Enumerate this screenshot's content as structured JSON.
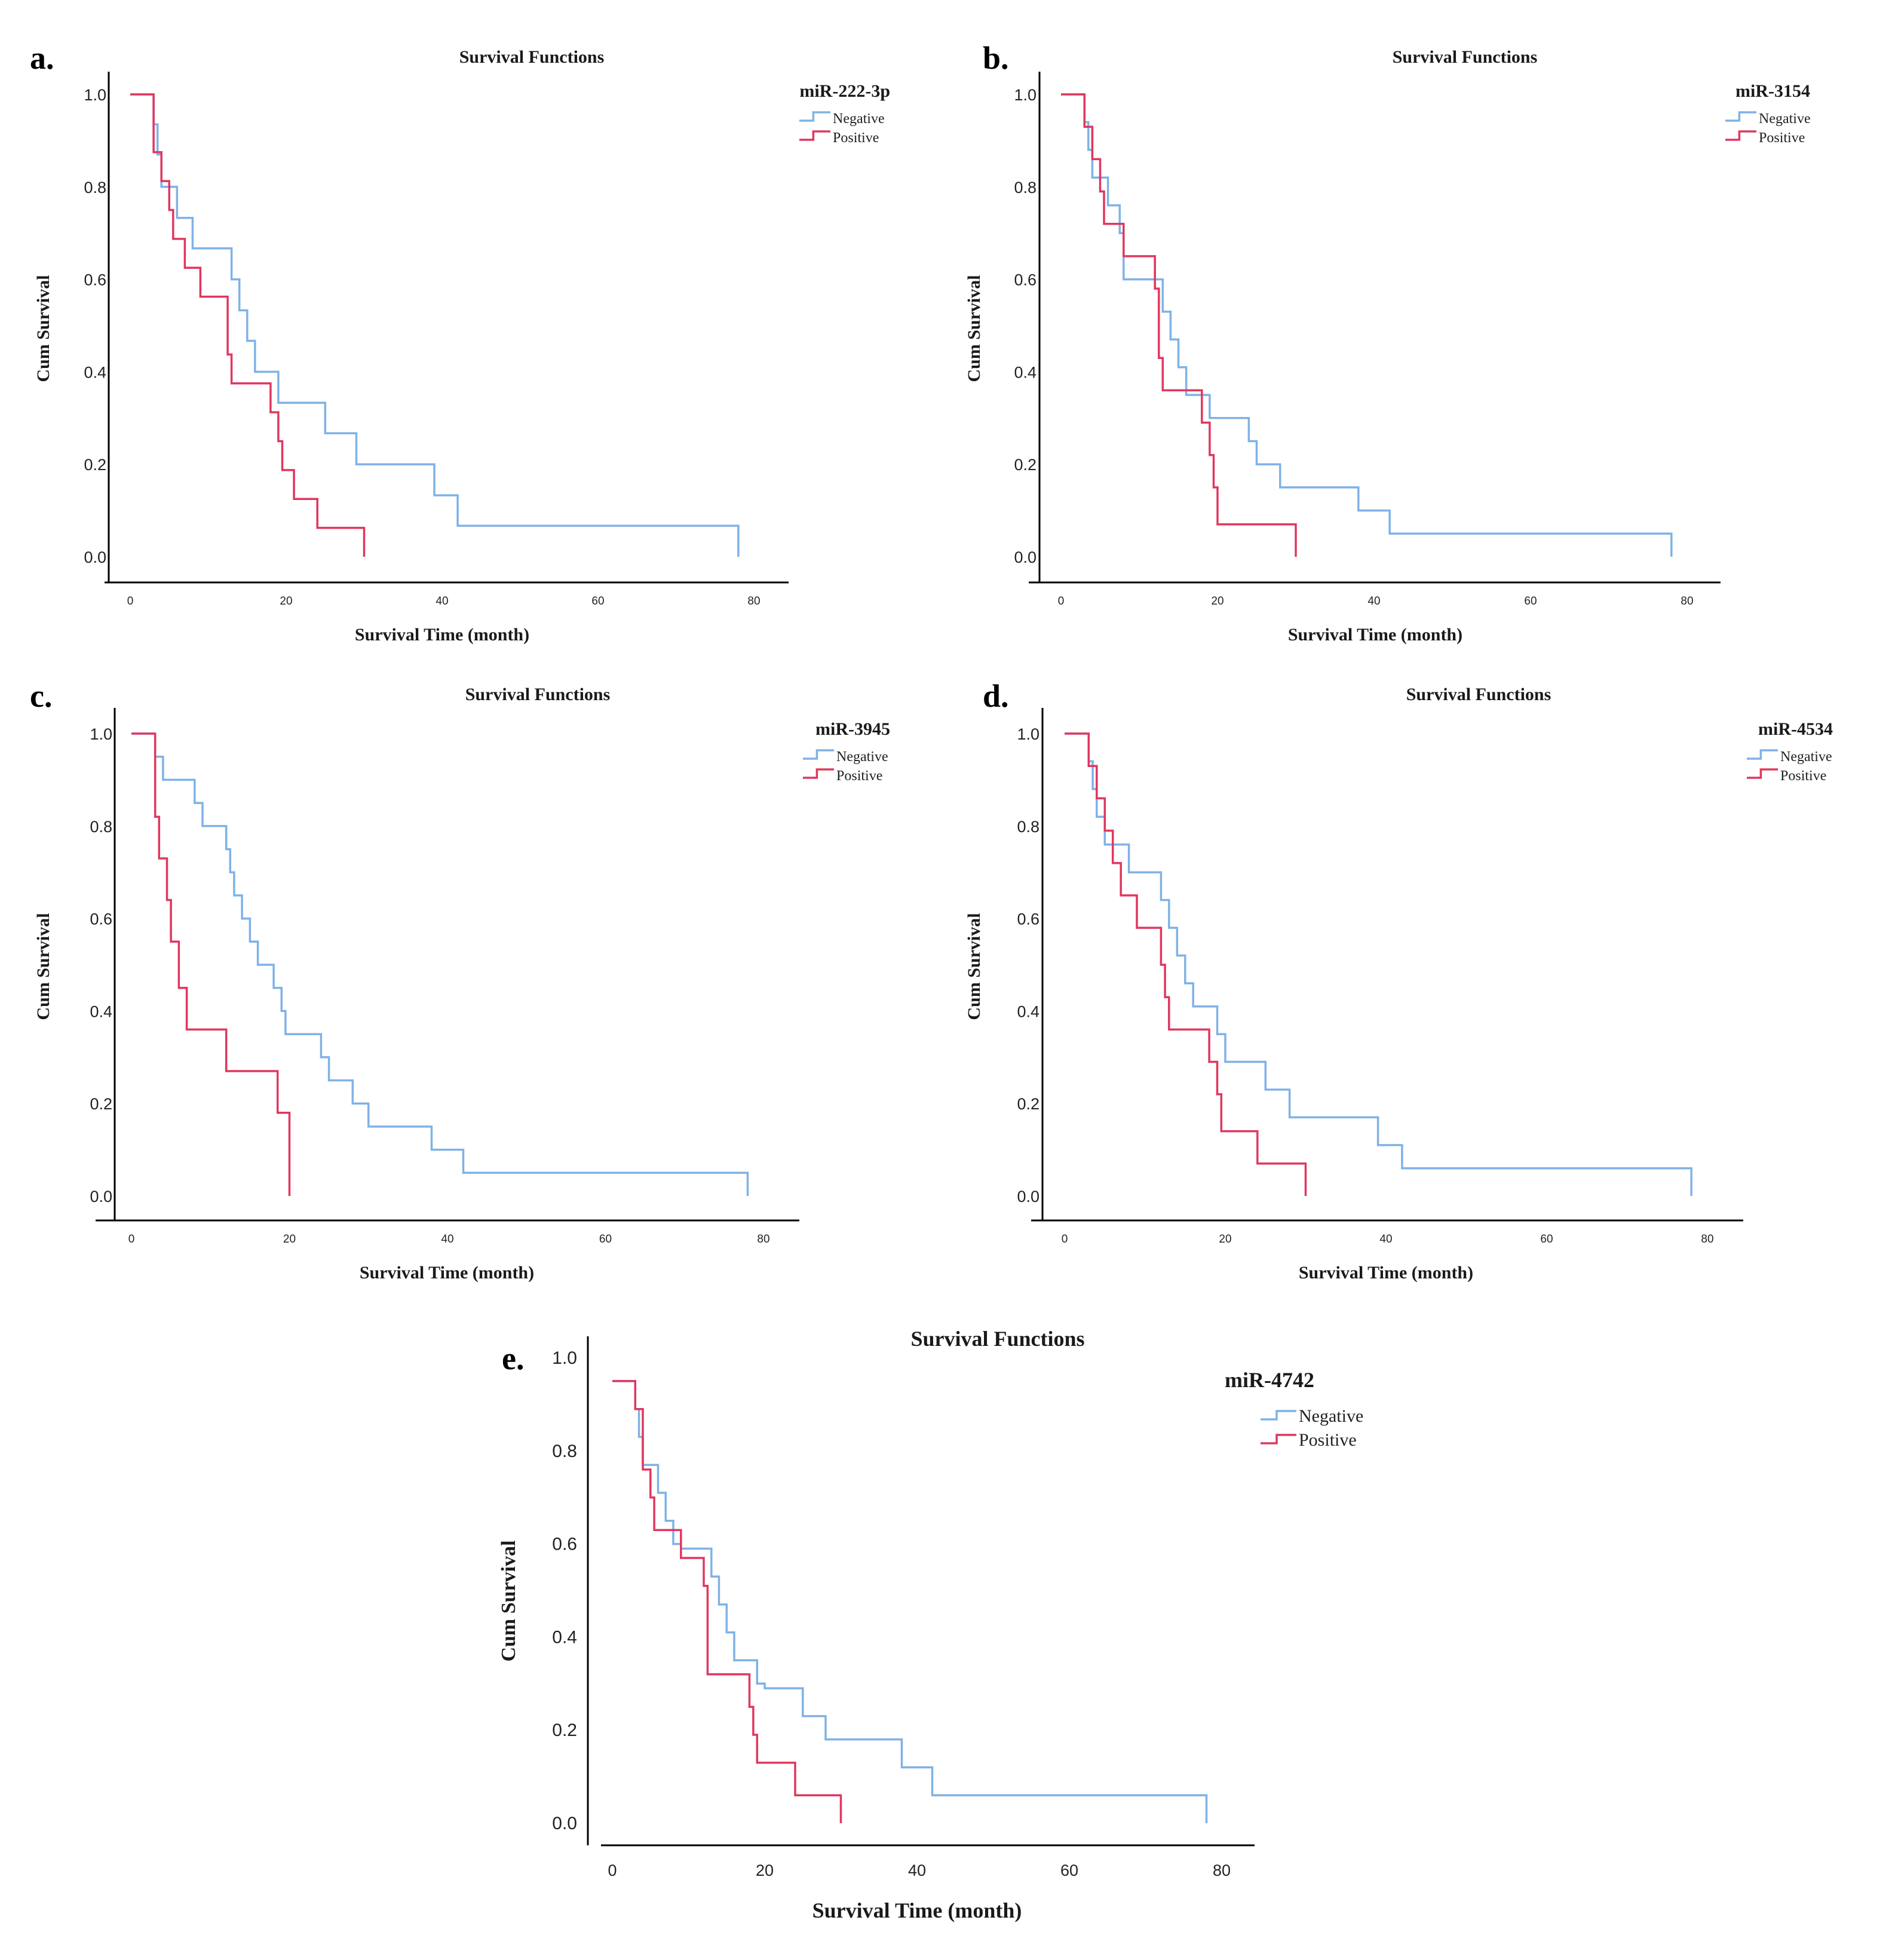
{
  "colors": {
    "negative": "#7fb2e6",
    "positive": "#e0375e",
    "axis": "#000000"
  },
  "chart_data": [
    {
      "panel": "a.",
      "type": "line",
      "title": "Survival Functions",
      "xlabel": "Survival Time (month)",
      "ylabel": "Cum Survival",
      "xlim": [
        0,
        80
      ],
      "ylim": [
        0,
        1.0
      ],
      "xticks": [
        "0",
        "20",
        "40",
        "60",
        "80"
      ],
      "yticks": [
        "0.0",
        "0.2",
        "0.4",
        "0.6",
        "0.8",
        "1.0"
      ],
      "legend_title": "miR-222-3p",
      "legend_position": "top-right",
      "series": [
        {
          "name": "Negative",
          "color": "#7fb2e6",
          "step_times": [
            0,
            3,
            3.5,
            4,
            6,
            8,
            13,
            14,
            15,
            16,
            19,
            25,
            29,
            39,
            42,
            78
          ],
          "step_values": [
            1.0,
            0.935,
            0.87,
            0.8,
            0.733,
            0.667,
            0.6,
            0.533,
            0.467,
            0.4,
            0.333,
            0.267,
            0.2,
            0.133,
            0.067,
            0.0
          ]
        },
        {
          "name": "Positive",
          "color": "#e0375e",
          "step_times": [
            0,
            3,
            4,
            5,
            5.5,
            7,
            9,
            12.5,
            13,
            18,
            19,
            19.5,
            21,
            24,
            30
          ],
          "step_values": [
            1.0,
            0.875,
            0.8125,
            0.75,
            0.6875,
            0.625,
            0.5625,
            0.4375,
            0.375,
            0.3125,
            0.25,
            0.1875,
            0.125,
            0.0625,
            0.0
          ]
        }
      ]
    },
    {
      "panel": "b.",
      "type": "line",
      "title": "Survival Functions",
      "xlabel": "Survival Time (month)",
      "ylabel": "Cum Survival",
      "xlim": [
        0,
        80
      ],
      "ylim": [
        0,
        1.0
      ],
      "xticks": [
        "0",
        "20",
        "40",
        "60",
        "80"
      ],
      "yticks": [
        "0.0",
        "0.2",
        "0.4",
        "0.6",
        "0.8",
        "1.0"
      ],
      "legend_title": "miR-3154",
      "legend_position": "top-right",
      "series": [
        {
          "name": "Negative",
          "color": "#7fb2e6",
          "step_times": [
            0,
            3,
            3.5,
            4,
            6,
            7.5,
            8,
            13,
            14,
            15,
            16,
            19,
            24,
            25,
            28,
            38,
            42,
            78
          ],
          "step_values": [
            1.0,
            0.94,
            0.88,
            0.82,
            0.76,
            0.7,
            0.6,
            0.53,
            0.47,
            0.41,
            0.35,
            0.3,
            0.25,
            0.2,
            0.15,
            0.1,
            0.05,
            0.0
          ]
        },
        {
          "name": "Positive",
          "color": "#e0375e",
          "step_times": [
            0,
            3,
            4,
            5,
            5.5,
            8,
            12,
            12.5,
            13,
            18,
            19,
            19.5,
            20,
            30
          ],
          "step_values": [
            1.0,
            0.93,
            0.86,
            0.79,
            0.72,
            0.65,
            0.58,
            0.43,
            0.36,
            0.29,
            0.22,
            0.15,
            0.07,
            0.0
          ]
        }
      ]
    },
    {
      "panel": "c.",
      "type": "line",
      "title": "Survival Functions",
      "xlabel": "Survival Time (month)",
      "ylabel": "Cum Survival",
      "xlim": [
        0,
        80
      ],
      "ylim": [
        0,
        1.0
      ],
      "xticks": [
        "0",
        "20",
        "40",
        "60",
        "80"
      ],
      "yticks": [
        "0.0",
        "0.2",
        "0.4",
        "0.6",
        "0.8",
        "1.0"
      ],
      "legend_title": "miR-3945",
      "legend_position": "top-right",
      "series": [
        {
          "name": "Negative",
          "color": "#7fb2e6",
          "step_times": [
            0,
            3,
            4,
            8,
            9,
            12,
            12.5,
            13,
            14,
            15,
            16,
            18,
            19,
            19.5,
            24,
            25,
            28,
            30,
            38,
            42,
            78
          ],
          "step_values": [
            1.0,
            0.95,
            0.9,
            0.85,
            0.8,
            0.75,
            0.7,
            0.65,
            0.6,
            0.55,
            0.5,
            0.45,
            0.4,
            0.35,
            0.3,
            0.25,
            0.2,
            0.15,
            0.1,
            0.05,
            0.0
          ]
        },
        {
          "name": "Positive",
          "color": "#e0375e",
          "step_times": [
            0,
            3,
            3.5,
            4.5,
            5,
            6,
            7,
            12,
            18.5,
            20
          ],
          "step_values": [
            1.0,
            0.82,
            0.73,
            0.64,
            0.55,
            0.45,
            0.36,
            0.27,
            0.18,
            0.0
          ]
        }
      ]
    },
    {
      "panel": "d.",
      "type": "line",
      "title": "Survival Functions",
      "xlabel": "Survival Time (month)",
      "ylabel": "Cum Survival",
      "xlim": [
        0,
        80
      ],
      "ylim": [
        0,
        1.0
      ],
      "xticks": [
        "0",
        "20",
        "40",
        "60",
        "80"
      ],
      "yticks": [
        "0.0",
        "0.2",
        "0.4",
        "0.6",
        "0.8",
        "1.0"
      ],
      "legend_title": "miR-4534",
      "legend_position": "top-right",
      "series": [
        {
          "name": "Negative",
          "color": "#7fb2e6",
          "step_times": [
            0,
            3,
            3.5,
            4,
            5,
            8,
            12,
            13,
            14,
            15,
            16,
            19,
            20,
            25,
            28,
            39,
            42,
            78
          ],
          "step_values": [
            1.0,
            0.94,
            0.88,
            0.82,
            0.76,
            0.7,
            0.64,
            0.58,
            0.52,
            0.46,
            0.41,
            0.35,
            0.29,
            0.23,
            0.17,
            0.11,
            0.06,
            0.0
          ]
        },
        {
          "name": "Positive",
          "color": "#e0375e",
          "step_times": [
            0,
            3,
            4,
            5,
            6,
            7,
            9,
            12,
            12.5,
            13,
            18,
            19,
            19.5,
            24,
            30
          ],
          "step_values": [
            1.0,
            0.93,
            0.86,
            0.79,
            0.72,
            0.65,
            0.58,
            0.5,
            0.43,
            0.36,
            0.29,
            0.22,
            0.14,
            0.07,
            0.0
          ]
        }
      ]
    },
    {
      "panel": "e.",
      "type": "line",
      "title": "Survival Functions",
      "xlabel": "Survival Time (month)",
      "ylabel": "Cum Survival",
      "xlim": [
        0,
        80
      ],
      "ylim": [
        0,
        1.0
      ],
      "xticks": [
        "0",
        "20",
        "40",
        "60",
        "80"
      ],
      "yticks": [
        "0.0",
        "0.2",
        "0.4",
        "0.6",
        "0.8",
        "1.0"
      ],
      "legend_title": "miR-4742",
      "legend_position": "top-right",
      "series": [
        {
          "name": "Negative",
          "color": "#7fb2e6",
          "step_times": [
            0,
            3,
            3.5,
            4,
            6,
            7,
            8,
            9,
            13,
            14,
            15,
            16,
            19,
            20,
            25,
            28,
            38,
            42,
            78
          ],
          "step_values": [
            0.95,
            0.89,
            0.83,
            0.77,
            0.71,
            0.65,
            0.6,
            0.59,
            0.53,
            0.47,
            0.41,
            0.35,
            0.3,
            0.29,
            0.23,
            0.18,
            0.12,
            0.06,
            0.0
          ]
        },
        {
          "name": "Positive",
          "color": "#e0375e",
          "step_times": [
            0,
            3,
            4,
            5,
            5.5,
            9,
            12,
            12.5,
            18,
            18.5,
            19,
            24,
            30
          ],
          "step_values": [
            0.95,
            0.89,
            0.76,
            0.7,
            0.63,
            0.57,
            0.51,
            0.32,
            0.25,
            0.19,
            0.13,
            0.06,
            0.0
          ]
        }
      ]
    }
  ]
}
